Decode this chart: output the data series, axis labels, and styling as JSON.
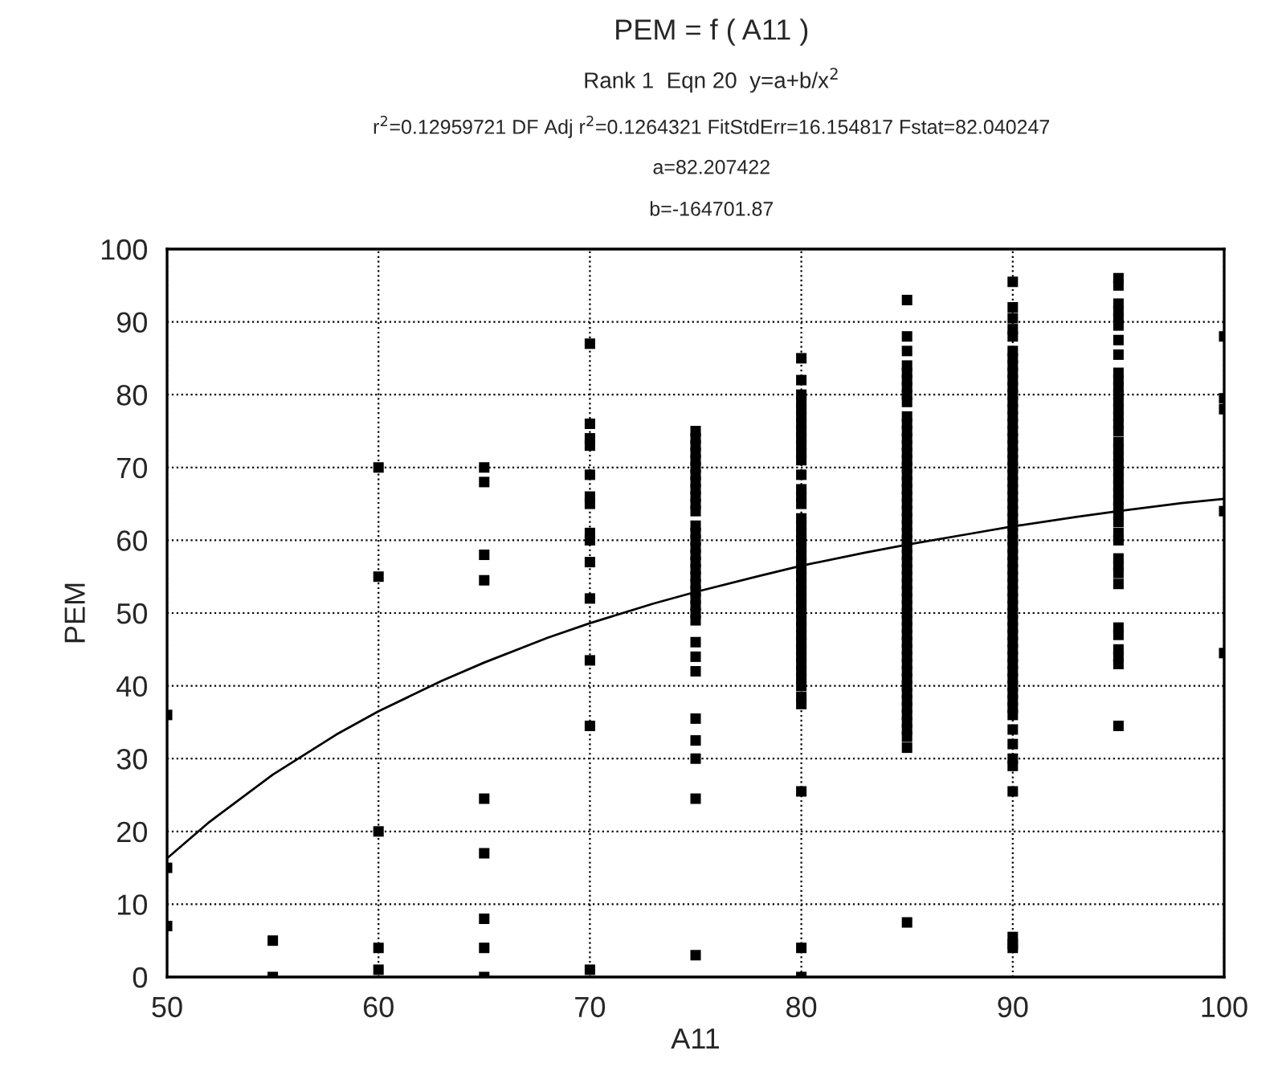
{
  "chart_data": {
    "type": "scatter",
    "title": "PEM = f ( A11 )",
    "subtitle": "Rank 1  Eqn 20  y=a+b/x$^{2}$",
    "annotations": [
      "r$^{2}$=0.12959721 DF Adj r$^{2}$=0.1264321 FitStdErr=16.154817 Fstat=82.040247",
      "a=82.207422",
      "b=-164701.87"
    ],
    "xlabel": "A11",
    "ylabel": "PEM",
    "xlim": [
      50,
      100
    ],
    "xticks": [
      50,
      60,
      70,
      80,
      90,
      100
    ],
    "ylim": [
      0,
      100
    ],
    "yticks": [
      0,
      10,
      20,
      30,
      40,
      50,
      60,
      70,
      80,
      90,
      100
    ],
    "grid": true,
    "legend": false,
    "marker": "square",
    "series": [
      {
        "color": "#000000",
        "x": [
          50,
          50,
          50
        ],
        "values": [
          36,
          15,
          7
        ]
      },
      {
        "color": "#000000",
        "x": [
          55,
          55
        ],
        "values": [
          5,
          0
        ]
      },
      {
        "color": "#000000",
        "x": [
          60,
          60,
          60,
          60,
          60
        ],
        "values": [
          70,
          55,
          20,
          4,
          1
        ]
      },
      {
        "color": "#000000",
        "x": [
          65,
          65,
          65,
          65,
          65,
          65,
          65,
          65,
          65
        ],
        "values": [
          70,
          68,
          58,
          54.5,
          24.5,
          17,
          8,
          4,
          0
        ]
      },
      {
        "color": "#000000",
        "x": [
          70,
          70,
          70,
          70,
          70,
          70,
          70,
          70,
          70,
          70,
          70,
          70,
          70,
          70
        ],
        "values": [
          87,
          76,
          74,
          73,
          69,
          66,
          65,
          61,
          60,
          57,
          52,
          43.5,
          34.5,
          1
        ]
      },
      {
        "color": "#000000",
        "x": [
          75,
          75,
          75,
          75,
          75,
          75,
          75,
          75,
          75,
          75,
          75,
          75,
          75,
          75,
          75,
          75,
          75,
          75,
          75,
          75,
          75,
          75,
          75,
          75,
          75,
          75,
          75,
          75,
          75,
          75,
          75,
          75,
          75,
          75
        ],
        "values": [
          75,
          74,
          73,
          72,
          71,
          70,
          69,
          68,
          67,
          66,
          65,
          64,
          62,
          61,
          60,
          59,
          58,
          57,
          56,
          55,
          54,
          53,
          52,
          51,
          50,
          49,
          46,
          44,
          42,
          35.5,
          32.5,
          30,
          24.5,
          3
        ]
      },
      {
        "color": "#000000",
        "x": [
          80,
          80,
          80,
          80,
          80,
          80,
          80,
          80,
          80,
          80,
          80,
          80,
          80,
          80,
          80,
          80,
          80,
          80,
          80,
          80,
          80,
          80,
          80,
          80,
          80,
          80,
          80,
          80,
          80,
          80,
          80,
          80,
          80,
          80,
          80,
          80,
          80,
          80,
          80,
          80,
          80,
          80,
          80,
          80,
          80
        ],
        "values": [
          85,
          82,
          80,
          79,
          78,
          77,
          76,
          75,
          74,
          73,
          72,
          71,
          69,
          67,
          66,
          65,
          63,
          62,
          61,
          60,
          59,
          58,
          57,
          56,
          55,
          54,
          53,
          52,
          51,
          50,
          49,
          48,
          47,
          46,
          45,
          44,
          43,
          42,
          41,
          40,
          38.5,
          37.5,
          25.5,
          4,
          0
        ]
      },
      {
        "color": "#000000",
        "x": [
          85,
          85,
          85,
          85,
          85,
          85,
          85,
          85,
          85,
          85,
          85,
          85,
          85,
          85,
          85,
          85,
          85,
          85,
          85,
          85,
          85,
          85,
          85,
          85,
          85,
          85,
          85,
          85,
          85,
          85,
          85,
          85,
          85,
          85,
          85,
          85,
          85,
          85,
          85,
          85,
          85,
          85,
          85,
          85,
          85,
          85,
          85,
          85,
          85,
          85,
          85,
          85,
          85,
          85,
          85,
          85
        ],
        "values": [
          93,
          88,
          86,
          84,
          83,
          82,
          81,
          80,
          79,
          77,
          76,
          75,
          74,
          73,
          72,
          71,
          70,
          69,
          68,
          67,
          66,
          65,
          64,
          63,
          62,
          61,
          60,
          59,
          58,
          57,
          56,
          55,
          54,
          53,
          52,
          51,
          50,
          49,
          48,
          47,
          46,
          45,
          44,
          43,
          42,
          41,
          40,
          39,
          38,
          37,
          36,
          35,
          34,
          33,
          31.5,
          7.5
        ]
      },
      {
        "color": "#000000",
        "x": [
          90,
          90,
          90,
          90,
          90,
          90,
          90,
          90,
          90,
          90,
          90,
          90,
          90,
          90,
          90,
          90,
          90,
          90,
          90,
          90,
          90,
          90,
          90,
          90,
          90,
          90,
          90,
          90,
          90,
          90,
          90,
          90,
          90,
          90,
          90,
          90,
          90,
          90,
          90,
          90,
          90,
          90,
          90,
          90,
          90,
          90,
          90,
          90,
          90,
          90,
          90,
          90,
          90,
          90,
          90,
          90,
          90,
          90,
          90,
          90,
          90,
          90,
          90,
          90
        ],
        "values": [
          95.5,
          92,
          90.5,
          89,
          88,
          86,
          85,
          84,
          83,
          82,
          81,
          80,
          79,
          78,
          77,
          76,
          75,
          74,
          73,
          72,
          71,
          70,
          69,
          68,
          67,
          66,
          65,
          64,
          63,
          62,
          61,
          60,
          59,
          58,
          57,
          56,
          55,
          54,
          53,
          52,
          51,
          50,
          49,
          48,
          47,
          46,
          45,
          44,
          43,
          42,
          41,
          40,
          39,
          38,
          37,
          36,
          34,
          32,
          30,
          29,
          25.5,
          5.5,
          4.5,
          4
        ]
      },
      {
        "color": "#000000",
        "x": [
          95,
          95,
          95,
          95,
          95,
          95,
          95,
          95,
          95,
          95,
          95,
          95,
          95,
          95,
          95,
          95,
          95,
          95,
          95,
          95,
          95,
          95,
          95,
          95,
          95,
          95,
          95,
          95,
          95,
          95,
          95,
          95,
          95,
          95,
          95,
          95,
          95,
          95,
          95,
          95,
          95
        ],
        "values": [
          96,
          95,
          92.5,
          91.5,
          90.5,
          89.5,
          87.5,
          85.5,
          83,
          82,
          81,
          80,
          79,
          78,
          77,
          76,
          75,
          73.5,
          72.5,
          71.5,
          70.5,
          69.5,
          68.5,
          67.5,
          66.5,
          65.5,
          64.5,
          63.5,
          62.5,
          61,
          60,
          57.5,
          56.5,
          55.5,
          54,
          48,
          47,
          45,
          44,
          43,
          34.5
        ]
      },
      {
        "color": "#000000",
        "x": [
          100,
          100,
          100,
          100,
          100
        ],
        "values": [
          88,
          79.5,
          78,
          64,
          44.5
        ]
      },
      {
        "type": "line",
        "color": "#000000",
        "marker": "none",
        "line_style": "solid",
        "x": [
          50,
          52,
          55,
          58,
          60,
          63,
          65,
          68,
          70,
          73,
          75,
          78,
          80,
          83,
          85,
          88,
          90,
          93,
          95,
          98,
          100
        ],
        "values": [
          16.3,
          21.3,
          27.8,
          33.3,
          36.5,
          40.7,
          43.2,
          46.6,
          48.6,
          51.3,
          52.9,
          55.1,
          56.5,
          58.3,
          59.4,
          60.9,
          61.9,
          63.2,
          64,
          65.1,
          65.7
        ]
      }
    ]
  }
}
